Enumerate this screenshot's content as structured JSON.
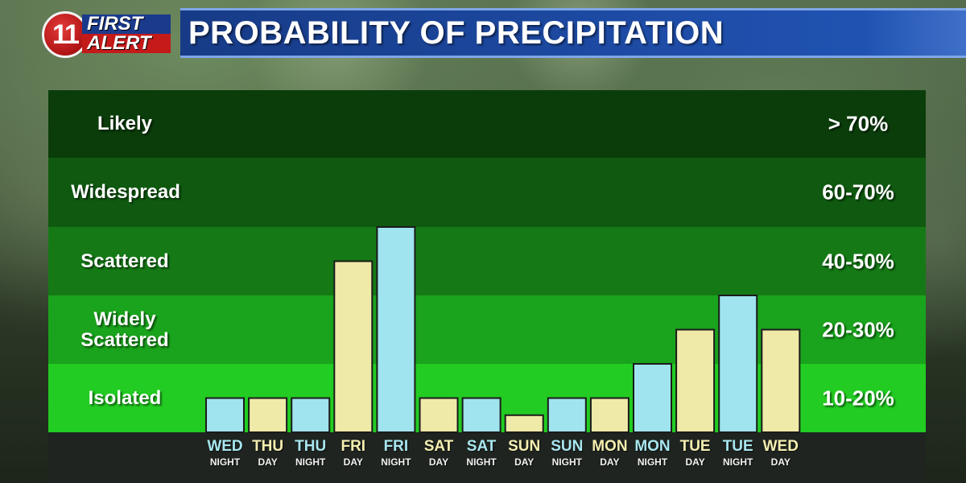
{
  "header": {
    "logo_number": "11",
    "logo_first": "FIRST",
    "logo_alert": "ALERT",
    "title": "PROBABILITY OF PRECIPITATION"
  },
  "colors": {
    "band_likely": "#0b3d0b",
    "band_widespread": "#0f5a10",
    "band_scattered": "#157a16",
    "band_widely": "#1aa31c",
    "band_isolated": "#22cc22",
    "night_bar": "#9fe4ee",
    "day_bar": "#f0eaa8",
    "night_label": "#a8e6f0",
    "day_label": "#f4eeb0"
  },
  "bands": [
    {
      "label": "Likely",
      "label_lines": [
        "Likely"
      ],
      "range": "> 70%"
    },
    {
      "label": "Widespread",
      "label_lines": [
        "Widespread"
      ],
      "range": "60-70%"
    },
    {
      "label": "Scattered",
      "label_lines": [
        "Scattered"
      ],
      "range": "40-50%"
    },
    {
      "label": "Widely Scattered",
      "label_lines": [
        "Widely",
        "Scattered"
      ],
      "range": "20-30%"
    },
    {
      "label": "Isolated",
      "label_lines": [
        "Isolated"
      ],
      "range": "10-20%"
    }
  ],
  "chart_data": {
    "type": "bar",
    "title": "PROBABILITY OF PRECIPITATION",
    "ylim": [
      0,
      100
    ],
    "categories": [
      {
        "day": "WED",
        "part": "NIGHT"
      },
      {
        "day": "THU",
        "part": "DAY"
      },
      {
        "day": "THU",
        "part": "NIGHT"
      },
      {
        "day": "FRI",
        "part": "DAY"
      },
      {
        "day": "FRI",
        "part": "NIGHT"
      },
      {
        "day": "SAT",
        "part": "DAY"
      },
      {
        "day": "SAT",
        "part": "NIGHT"
      },
      {
        "day": "SUN",
        "part": "DAY"
      },
      {
        "day": "SUN",
        "part": "NIGHT"
      },
      {
        "day": "MON",
        "part": "DAY"
      },
      {
        "day": "MON",
        "part": "NIGHT"
      },
      {
        "day": "TUE",
        "part": "DAY"
      },
      {
        "day": "TUE",
        "part": "NIGHT"
      },
      {
        "day": "WED",
        "part": "DAY"
      }
    ],
    "values": [
      10,
      10,
      10,
      40,
      50,
      10,
      10,
      5,
      10,
      10,
      20,
      25,
      30,
      25
    ],
    "grid": false,
    "legend": "none"
  }
}
